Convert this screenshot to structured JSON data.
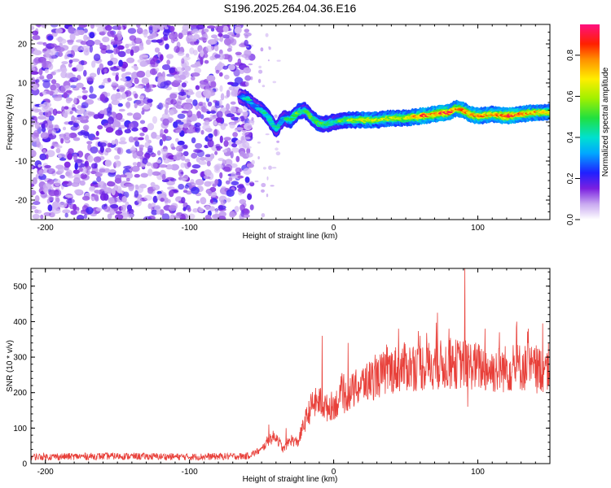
{
  "title": "S196.2025.264.04.36.E16",
  "spectrogram": {
    "type": "heatmap",
    "xlabel": "Height of straight line (km)",
    "ylabel": "Frequency (Hz)",
    "xlim": [
      -210,
      150
    ],
    "ylim": [
      -25,
      25
    ],
    "xticks": [
      -200,
      -100,
      0,
      100
    ],
    "yticks": [
      -20,
      -10,
      0,
      10,
      20
    ],
    "noise_region_x": [
      -210,
      -60
    ],
    "ridge_x": [
      -65,
      -60,
      -55,
      -50,
      -45,
      -40,
      -35,
      -30,
      -25,
      -20,
      -15,
      -10,
      -5,
      0,
      10,
      20,
      30,
      40,
      50,
      60,
      70,
      80,
      85,
      90,
      95,
      100,
      110,
      120,
      130,
      140,
      150
    ],
    "ridge_freq": [
      6.5,
      6,
      4,
      3,
      1,
      -2,
      1,
      0.5,
      2.5,
      3,
      1,
      -0.5,
      -0.5,
      0,
      0.5,
      0.5,
      0.5,
      1,
      1,
      1.5,
      2,
      2.5,
      3.5,
      3,
      2,
      1.5,
      2,
      1.5,
      2,
      2.5,
      2.5
    ],
    "ridge_amplitude": [
      0.3,
      0.5,
      0.35,
      0.45,
      0.5,
      0.45,
      0.4,
      0.55,
      0.6,
      0.5,
      0.55,
      0.6,
      0.5,
      0.5,
      0.6,
      0.75,
      0.7,
      0.7,
      0.7,
      0.9,
      0.85,
      0.95,
      0.8,
      0.85,
      0.9,
      0.85,
      0.8,
      0.95,
      0.85,
      0.8,
      0.75
    ]
  },
  "colorbar": {
    "label": "Normalized spectral amplitude",
    "ticks": [
      "0.0",
      "0.2",
      "0.4",
      "0.6",
      "0.8"
    ],
    "range": [
      0,
      0.95
    ]
  },
  "snr_plot": {
    "type": "line",
    "xlabel": "Height of straight line (km)",
    "ylabel": "SNR (10 * v/v)",
    "xlim": [
      -210,
      150
    ],
    "ylim": [
      0,
      550
    ],
    "xticks": [
      -200,
      -100,
      0,
      100
    ],
    "yticks": [
      0,
      100,
      200,
      300,
      400,
      500
    ],
    "color": "#e8403a",
    "x": [
      -210,
      -150,
      -100,
      -60,
      -50,
      -45,
      -40,
      -35,
      -30,
      -25,
      -20,
      -15,
      -10,
      -5,
      0,
      10,
      20,
      30,
      40,
      50,
      60,
      70,
      80,
      90,
      100,
      110,
      120,
      130,
      140,
      150
    ],
    "y": [
      20,
      22,
      20,
      22,
      40,
      70,
      80,
      40,
      70,
      60,
      120,
      170,
      180,
      160,
      170,
      200,
      230,
      250,
      270,
      280,
      280,
      285,
      285,
      290,
      280,
      270,
      275,
      280,
      270,
      280
    ],
    "spikes": [
      [
        -45,
        110
      ],
      [
        -33,
        100
      ],
      [
        -8,
        360
      ],
      [
        10,
        340
      ],
      [
        45,
        380
      ],
      [
        60,
        360
      ],
      [
        72,
        425
      ],
      [
        80,
        380
      ],
      [
        91,
        550
      ],
      [
        93,
        160
      ],
      [
        105,
        380
      ],
      [
        115,
        370
      ],
      [
        127,
        400
      ],
      [
        135,
        380
      ],
      [
        145,
        395
      ]
    ]
  }
}
